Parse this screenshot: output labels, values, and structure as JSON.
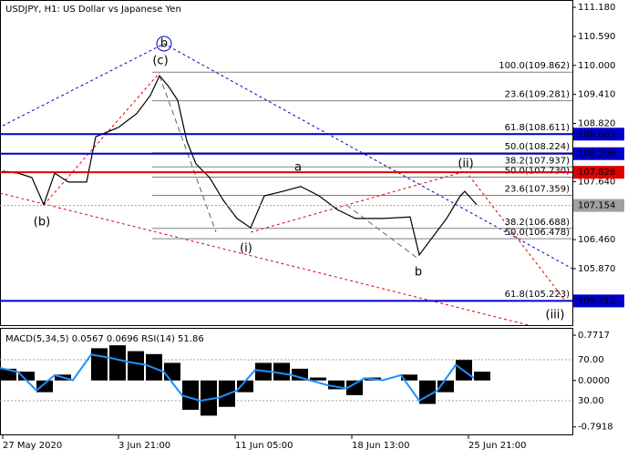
{
  "chart_data": [
    {
      "type": "line",
      "title": "USDJPY, H1:  US Dollar vs Japanese Yen",
      "xlim": [
        0,
        125.6
      ],
      "ylim": [
        104.723,
        111.328
      ],
      "xticks": [
        {
          "value": 0.6,
          "label": "27 May 2020"
        },
        {
          "value": 26,
          "label": "3 Jun 21:00"
        },
        {
          "value": 51.6,
          "label": "11 Jun 05:00"
        },
        {
          "value": 77.2,
          "label": "18 Jun 13:00"
        },
        {
          "value": 102.8,
          "label": "25 Jun 21:00"
        }
      ],
      "yticks": [
        {
          "value": 111.18,
          "label": "111.180"
        },
        {
          "value": 110.59,
          "label": "110.590"
        },
        {
          "value": 110.0,
          "label": "110.000"
        },
        {
          "value": 109.41,
          "label": "109.410"
        },
        {
          "value": 108.82,
          "label": "108.820"
        },
        {
          "value": 107.64,
          "label": "107.640"
        },
        {
          "value": 106.46,
          "label": "106.460"
        },
        {
          "value": 105.87,
          "label": "105.870"
        }
      ],
      "series": [
        {
          "color": "#000000",
          "x": [
            0.6,
            4,
            7,
            9.6,
            12,
            15,
            19,
            21,
            26,
            30,
            33,
            35,
            37,
            39,
            41,
            43,
            46,
            49,
            52,
            55,
            58,
            62,
            66,
            70,
            74,
            78,
            84,
            90,
            92,
            95,
            98,
            101,
            102,
            104.6
          ],
          "values": [
            107.85,
            107.81,
            107.72,
            107.17,
            107.81,
            107.63,
            107.63,
            108.55,
            108.74,
            109.02,
            109.39,
            109.79,
            109.57,
            109.29,
            108.46,
            108.0,
            107.72,
            107.26,
            106.89,
            106.7,
            107.35,
            107.44,
            107.54,
            107.35,
            107.07,
            106.89,
            106.89,
            106.92,
            106.15,
            106.52,
            106.89,
            107.35,
            107.44,
            107.17
          ]
        }
      ],
      "levels": [
        {
          "value": 108.603,
          "label": "108.603",
          "color": "#0000cc"
        },
        {
          "value": 108.206,
          "label": "108.206",
          "color": "#0000cc"
        },
        {
          "value": 107.828,
          "label": "107.828",
          "color": "#e00000"
        },
        {
          "value": 107.154,
          "label": "107.154",
          "color": "#a0a0a0"
        },
        {
          "value": 105.215,
          "label": "105.215",
          "color": "#0000cc"
        }
      ],
      "fib_levels": [
        {
          "value": 109.862,
          "label": "100.0(109.862)"
        },
        {
          "value": 109.281,
          "label": "23.6(109.281)"
        },
        {
          "value": 108.611,
          "label": "61.8(108.611)"
        },
        {
          "value": 108.224,
          "label": "50.0(108.224)"
        },
        {
          "value": 107.937,
          "label": "38.2(107.937)"
        },
        {
          "value": 107.73,
          "label": "50.0(107.730)"
        },
        {
          "value": 107.359,
          "label": "23.6(107.359)"
        },
        {
          "value": 106.688,
          "label": "38.2(106.688)"
        },
        {
          "value": 106.478,
          "label": "50.0(106.478)"
        },
        {
          "value": 105.223,
          "label": "61.8(105.223)"
        }
      ],
      "wave_labels": [
        {
          "text": "b",
          "color": "#0000cc"
        },
        {
          "text": "(c)",
          "color": "#e00000"
        },
        {
          "text": "(b)",
          "color": "#e00000"
        },
        {
          "text": "(i)",
          "color": "#e00000"
        },
        {
          "text": "a",
          "color": "#808080"
        },
        {
          "text": "b",
          "color": "#808080"
        },
        {
          "text": "(ii)",
          "color": "#e00000"
        },
        {
          "text": "(iii)",
          "color": "#e00000"
        }
      ]
    },
    {
      "type": "bar",
      "title": "MACD(5,34,5) 0.0567 0.0696 RSI(14) 51.86",
      "xlim": [
        0,
        125.6
      ],
      "ylim": [
        -0.92,
        0.897
      ],
      "y2lim": [
        -2.9,
        101.1
      ],
      "yticks": [
        {
          "value": 0.7717,
          "label": "0.7717"
        },
        {
          "value": 0,
          "label": "0.0000"
        },
        {
          "value": -0.7918,
          "label": "-0.7918"
        }
      ],
      "y2ticks": [
        {
          "value": 70,
          "label": "70.00"
        },
        {
          "value": 30,
          "label": "30.00"
        }
      ],
      "x": [
        0,
        4,
        8,
        12,
        16,
        20,
        24,
        28,
        32,
        36,
        40,
        44,
        48,
        52,
        56,
        60,
        64,
        68,
        72,
        76,
        80,
        84,
        88,
        92,
        96,
        100,
        104
      ],
      "series": [
        {
          "color": "#000000",
          "values": [
            0.2,
            0.15,
            -0.2,
            0.1,
            0.0,
            0.55,
            0.6,
            0.5,
            0.45,
            0.3,
            -0.5,
            -0.6,
            -0.45,
            -0.2,
            0.3,
            0.3,
            0.2,
            0.05,
            -0.15,
            -0.25,
            0.05,
            0.0,
            0.1,
            -0.4,
            -0.2,
            0.35,
            0.15
          ]
        },
        {
          "color": "#1e90ff",
          "axis": "y2",
          "values": [
            62,
            58,
            40,
            55,
            50,
            75,
            72,
            68,
            65,
            58,
            35,
            30,
            33,
            40,
            60,
            58,
            55,
            50,
            45,
            42,
            52,
            50,
            55,
            30,
            40,
            65,
            52
          ]
        }
      ]
    }
  ]
}
